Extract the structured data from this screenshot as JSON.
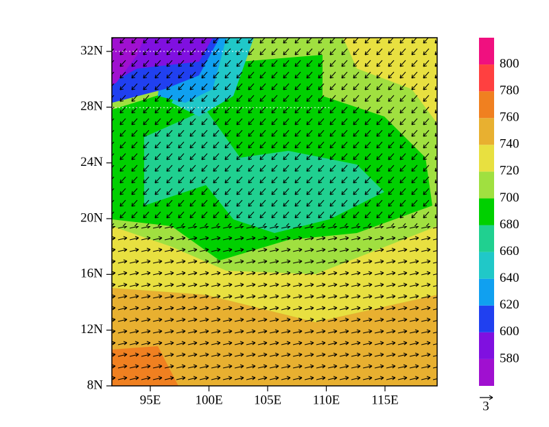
{
  "map": {
    "lat_ticks": [
      "32N",
      "28N",
      "24N",
      "20N",
      "16N",
      "12N",
      "8N"
    ],
    "lon_ticks": [
      "95E",
      "100E",
      "105E",
      "110E",
      "115E"
    ],
    "colorbar": {
      "labels": [
        580,
        600,
        620,
        640,
        660,
        680,
        700,
        720,
        740,
        760,
        780,
        800
      ],
      "colors": [
        "#a010d0",
        "#8010e0",
        "#2040f0",
        "#10a0f0",
        "#20c8c8",
        "#20d090",
        "#00d000",
        "#a0e040",
        "#e8e040",
        "#e8b030",
        "#f08020",
        "#ff4040",
        "#f0107f"
      ]
    },
    "vector_reference": "3"
  }
}
